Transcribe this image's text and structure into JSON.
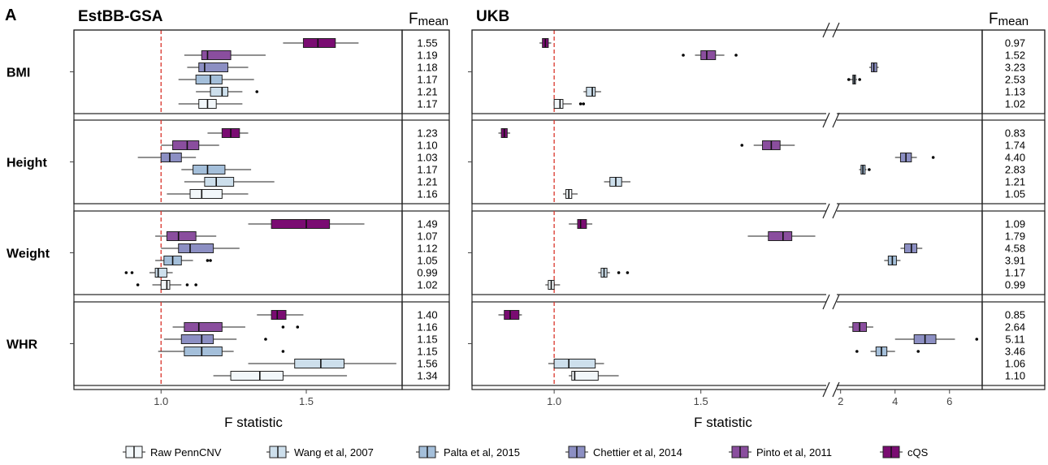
{
  "panel_letter": "A",
  "chart_data": {
    "type": "boxplot",
    "reference_line": 1.0,
    "fmean_label_main": "F",
    "fmean_label_sub": "mean",
    "method_colors": {
      "Raw PennCNV": "#f2f7fa",
      "Wang et al, 2007": "#cddfec",
      "Palta et al, 2015": "#a4bfda",
      "Chettier et al, 2014": "#8c8fc3",
      "Pinto et al, 2011": "#8a4e9e",
      "cQS": "#7a0c72"
    },
    "legend": [
      "Raw PennCNV",
      "Wang et al, 2007",
      "Palta et al, 2015",
      "Chettier et al, 2014",
      "Pinto et al, 2011",
      "cQS"
    ],
    "traits": [
      "BMI",
      "Height",
      "Weight",
      "WHR"
    ],
    "panels": [
      {
        "title": "EstBB-GSA",
        "xlabel": "F statistic",
        "xlim": [
          0.7,
          1.83
        ],
        "xticks": [
          "1.0",
          "1.5"
        ],
        "xtick_values": [
          1.0,
          1.5
        ],
        "rows": {
          "BMI": [
            {
              "method": "cQS",
              "whisker": [
                1.42,
                1.68
              ],
              "box": [
                1.49,
                1.6
              ],
              "median": 1.54,
              "outliers": [],
              "fmean": "1.55"
            },
            {
              "method": "Pinto et al, 2011",
              "whisker": [
                1.08,
                1.36
              ],
              "box": [
                1.14,
                1.24
              ],
              "median": 1.16,
              "outliers": [],
              "fmean": "1.19"
            },
            {
              "method": "Chettier et al, 2014",
              "whisker": [
                1.09,
                1.3
              ],
              "box": [
                1.13,
                1.23
              ],
              "median": 1.15,
              "outliers": [],
              "fmean": "1.18"
            },
            {
              "method": "Palta et al, 2015",
              "whisker": [
                1.06,
                1.32
              ],
              "box": [
                1.12,
                1.21
              ],
              "median": 1.17,
              "outliers": [],
              "fmean": "1.17"
            },
            {
              "method": "Wang et al, 2007",
              "whisker": [
                1.12,
                1.28
              ],
              "box": [
                1.17,
                1.23
              ],
              "median": 1.21,
              "outliers": [
                1.33
              ],
              "fmean": "1.21"
            },
            {
              "method": "Raw PennCNV",
              "whisker": [
                1.06,
                1.28
              ],
              "box": [
                1.13,
                1.19
              ],
              "median": 1.16,
              "outliers": [],
              "fmean": "1.17"
            }
          ],
          "Height": [
            {
              "method": "cQS",
              "whisker": [
                1.16,
                1.3
              ],
              "box": [
                1.21,
                1.27
              ],
              "median": 1.24,
              "outliers": [],
              "fmean": "1.23"
            },
            {
              "method": "Pinto et al, 2011",
              "whisker": [
                1.0,
                1.2
              ],
              "box": [
                1.04,
                1.13
              ],
              "median": 1.09,
              "outliers": [],
              "fmean": "1.10"
            },
            {
              "method": "Chettier et al, 2014",
              "whisker": [
                0.92,
                1.12
              ],
              "box": [
                1.0,
                1.07
              ],
              "median": 1.03,
              "outliers": [],
              "fmean": "1.03"
            },
            {
              "method": "Palta et al, 2015",
              "whisker": [
                1.07,
                1.31
              ],
              "box": [
                1.11,
                1.22
              ],
              "median": 1.16,
              "outliers": [],
              "fmean": "1.17"
            },
            {
              "method": "Wang et al, 2007",
              "whisker": [
                1.08,
                1.39
              ],
              "box": [
                1.15,
                1.25
              ],
              "median": 1.19,
              "outliers": [],
              "fmean": "1.21"
            },
            {
              "method": "Raw PennCNV",
              "whisker": [
                1.02,
                1.3
              ],
              "box": [
                1.1,
                1.21
              ],
              "median": 1.14,
              "outliers": [],
              "fmean": "1.16"
            }
          ],
          "Weight": [
            {
              "method": "cQS",
              "whisker": [
                1.3,
                1.7
              ],
              "box": [
                1.38,
                1.58
              ],
              "median": 1.5,
              "outliers": [],
              "fmean": "1.49"
            },
            {
              "method": "Pinto et al, 2011",
              "whisker": [
                0.98,
                1.19
              ],
              "box": [
                1.02,
                1.12
              ],
              "median": 1.06,
              "outliers": [],
              "fmean": "1.07"
            },
            {
              "method": "Chettier et al, 2014",
              "whisker": [
                1.0,
                1.27
              ],
              "box": [
                1.06,
                1.18
              ],
              "median": 1.1,
              "outliers": [],
              "fmean": "1.12"
            },
            {
              "method": "Palta et al, 2015",
              "whisker": [
                0.98,
                1.11
              ],
              "box": [
                1.01,
                1.07
              ],
              "median": 1.04,
              "outliers": [
                1.16,
                1.17
              ],
              "fmean": "1.05"
            },
            {
              "method": "Wang et al, 2007",
              "whisker": [
                0.96,
                1.04
              ],
              "box": [
                0.98,
                1.02
              ],
              "median": 0.99,
              "outliers": [
                0.88,
                0.9
              ],
              "fmean": "0.99"
            },
            {
              "method": "Raw PennCNV",
              "whisker": [
                0.97,
                1.07
              ],
              "box": [
                1.0,
                1.03
              ],
              "median": 1.02,
              "outliers": [
                0.92,
                1.09,
                1.12
              ],
              "fmean": "1.02"
            }
          ],
          "WHR": [
            {
              "method": "cQS",
              "whisker": [
                1.33,
                1.49
              ],
              "box": [
                1.38,
                1.43
              ],
              "median": 1.4,
              "outliers": [],
              "fmean": "1.40"
            },
            {
              "method": "Pinto et al, 2011",
              "whisker": [
                1.04,
                1.29
              ],
              "box": [
                1.08,
                1.21
              ],
              "median": 1.13,
              "outliers": [
                1.42,
                1.47
              ],
              "fmean": "1.16"
            },
            {
              "method": "Chettier et al, 2014",
              "whisker": [
                1.01,
                1.26
              ],
              "box": [
                1.07,
                1.18
              ],
              "median": 1.14,
              "outliers": [
                1.36
              ],
              "fmean": "1.15"
            },
            {
              "method": "Palta et al, 2015",
              "whisker": [
                0.99,
                1.25
              ],
              "box": [
                1.08,
                1.21
              ],
              "median": 1.14,
              "outliers": [
                1.42
              ],
              "fmean": "1.15"
            },
            {
              "method": "Wang et al, 2007",
              "whisker": [
                1.3,
                1.81
              ],
              "box": [
                1.46,
                1.63
              ],
              "median": 1.55,
              "outliers": [],
              "fmean": "1.56"
            },
            {
              "method": "Raw PennCNV",
              "whisker": [
                1.18,
                1.64
              ],
              "box": [
                1.24,
                1.42
              ],
              "median": 1.34,
              "outliers": [],
              "fmean": "1.34"
            }
          ]
        }
      },
      {
        "title": "UKB",
        "xlabel": "F statistic",
        "axis_break": {
          "left_range": [
            0.72,
            1.93
          ],
          "right_range": [
            1.8,
            7.2
          ],
          "break_after": 1.93
        },
        "xticks": [
          "1.0",
          "1.5",
          "2",
          "4",
          "6"
        ],
        "xtick_values": [
          1.0,
          1.5,
          2,
          4,
          6
        ],
        "rows": {
          "BMI": [
            {
              "method": "cQS",
              "whisker": [
                0.95,
                0.99
              ],
              "box": [
                0.96,
                0.98
              ],
              "median": 0.97,
              "outliers": [],
              "fmean": "0.97"
            },
            {
              "method": "Pinto et al, 2011",
              "whisker": [
                1.48,
                1.58
              ],
              "box": [
                1.5,
                1.55
              ],
              "median": 1.52,
              "outliers": [
                1.44,
                1.62
              ],
              "fmean": "1.52"
            },
            {
              "method": "Chettier et al, 2014",
              "whisker": [
                3.05,
                3.4
              ],
              "box": [
                3.13,
                3.33
              ],
              "median": 3.22,
              "outliers": [],
              "fmean": "3.23"
            },
            {
              "method": "Palta et al, 2015",
              "whisker": [
                2.35,
                2.6
              ],
              "box": [
                2.45,
                2.55
              ],
              "median": 2.5,
              "outliers": [
                2.3,
                2.7
              ],
              "fmean": "2.53"
            },
            {
              "method": "Wang et al, 2007",
              "whisker": [
                1.1,
                1.16
              ],
              "box": [
                1.11,
                1.14
              ],
              "median": 1.13,
              "outliers": [],
              "fmean": "1.13"
            },
            {
              "method": "Raw PennCNV",
              "whisker": [
                1.0,
                1.06
              ],
              "box": [
                1.0,
                1.03
              ],
              "median": 1.02,
              "outliers": [
                1.09,
                1.1
              ],
              "fmean": "1.02"
            }
          ],
          "Height": [
            {
              "method": "cQS",
              "whisker": [
                0.81,
                0.85
              ],
              "box": [
                0.82,
                0.84
              ],
              "median": 0.83,
              "outliers": [],
              "fmean": "0.83"
            },
            {
              "method": "Pinto et al, 2011",
              "whisker": [
                1.68,
                1.82
              ],
              "box": [
                1.71,
                1.77
              ],
              "median": 1.74,
              "outliers": [
                1.64
              ],
              "fmean": "1.74"
            },
            {
              "method": "Chettier et al, 2014",
              "whisker": [
                4.0,
                4.8
              ],
              "box": [
                4.2,
                4.6
              ],
              "median": 4.4,
              "outliers": [
                5.4
              ],
              "fmean": "4.40"
            },
            {
              "method": "Palta et al, 2015",
              "whisker": [
                2.68,
                2.95
              ],
              "box": [
                2.75,
                2.9
              ],
              "median": 2.82,
              "outliers": [
                3.05
              ],
              "fmean": "2.83"
            },
            {
              "method": "Wang et al, 2007",
              "whisker": [
                1.17,
                1.26
              ],
              "box": [
                1.19,
                1.23
              ],
              "median": 1.21,
              "outliers": [],
              "fmean": "1.21"
            },
            {
              "method": "Raw PennCNV",
              "whisker": [
                1.03,
                1.08
              ],
              "box": [
                1.04,
                1.06
              ],
              "median": 1.05,
              "outliers": [],
              "fmean": "1.05"
            }
          ],
          "Weight": [
            {
              "method": "cQS",
              "whisker": [
                1.05,
                1.13
              ],
              "box": [
                1.08,
                1.11
              ],
              "median": 1.09,
              "outliers": [],
              "fmean": "1.09"
            },
            {
              "method": "Pinto et al, 2011",
              "whisker": [
                1.66,
                1.89
              ],
              "box": [
                1.73,
                1.81
              ],
              "median": 1.78,
              "outliers": [],
              "fmean": "1.79"
            },
            {
              "method": "Chettier et al, 2014",
              "whisker": [
                4.2,
                5.0
              ],
              "box": [
                4.35,
                4.8
              ],
              "median": 4.6,
              "outliers": [],
              "fmean": "4.58"
            },
            {
              "method": "Palta et al, 2015",
              "whisker": [
                3.6,
                4.2
              ],
              "box": [
                3.75,
                4.05
              ],
              "median": 3.9,
              "outliers": [],
              "fmean": "3.91"
            },
            {
              "method": "Wang et al, 2007",
              "whisker": [
                1.15,
                1.19
              ],
              "box": [
                1.16,
                1.18
              ],
              "median": 1.17,
              "outliers": [
                1.22,
                1.25
              ],
              "fmean": "1.17"
            },
            {
              "method": "Raw PennCNV",
              "whisker": [
                0.97,
                1.02
              ],
              "box": [
                0.98,
                1.0
              ],
              "median": 0.99,
              "outliers": [],
              "fmean": "0.99"
            }
          ],
          "WHR": [
            {
              "method": "cQS",
              "whisker": [
                0.81,
                0.89
              ],
              "box": [
                0.83,
                0.88
              ],
              "median": 0.85,
              "outliers": [],
              "fmean": "0.85"
            },
            {
              "method": "Pinto et al, 2011",
              "whisker": [
                2.3,
                3.2
              ],
              "box": [
                2.45,
                2.95
              ],
              "median": 2.7,
              "outliers": [],
              "fmean": "2.64"
            },
            {
              "method": "Chettier et al, 2014",
              "whisker": [
                4.0,
                6.2
              ],
              "box": [
                4.7,
                5.5
              ],
              "median": 5.1,
              "outliers": [
                7.0
              ],
              "fmean": "5.11"
            },
            {
              "method": "Palta et al, 2015",
              "whisker": [
                3.1,
                4.0
              ],
              "box": [
                3.3,
                3.7
              ],
              "median": 3.5,
              "outliers": [
                2.6,
                4.85
              ],
              "fmean": "3.46"
            },
            {
              "method": "Wang et al, 2007",
              "whisker": [
                0.98,
                1.17
              ],
              "box": [
                1.0,
                1.14
              ],
              "median": 1.05,
              "outliers": [],
              "fmean": "1.06"
            },
            {
              "method": "Raw PennCNV",
              "whisker": [
                1.05,
                1.22
              ],
              "box": [
                1.06,
                1.15
              ],
              "median": 1.07,
              "outliers": [],
              "fmean": "1.10"
            }
          ]
        }
      }
    ]
  }
}
